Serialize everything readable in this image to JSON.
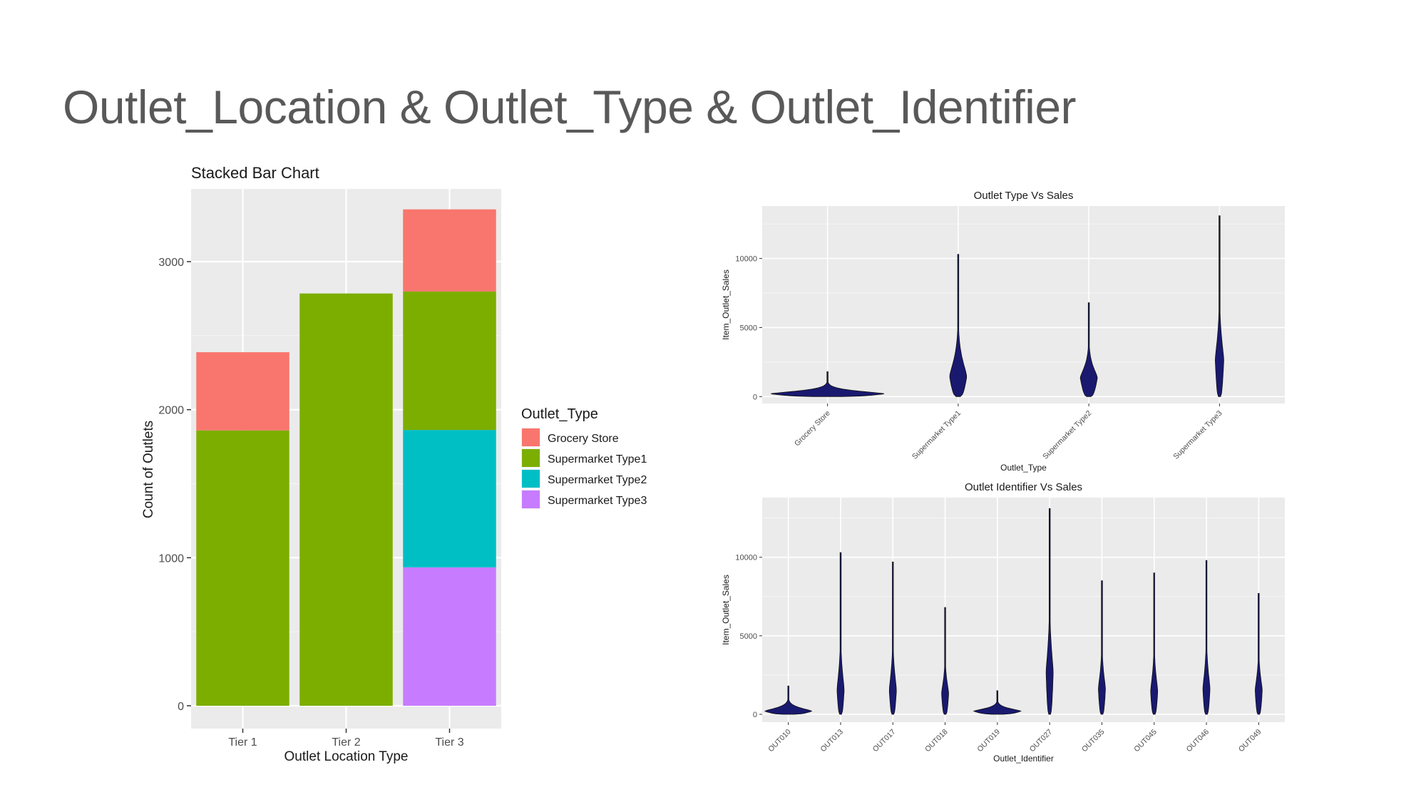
{
  "slide": {
    "title": "Outlet_Location & Outlet_Type & Outlet_Identifier"
  },
  "chart_data": [
    {
      "type": "bar",
      "stacked": true,
      "title": "Stacked Bar Chart",
      "xlabel": "Outlet Location Type",
      "ylabel": "Count of Outlets",
      "categories": [
        "Tier 1",
        "Tier 2",
        "Tier 3"
      ],
      "ylim": [
        0,
        3500
      ],
      "yticks": [
        "0",
        "1000",
        "2000",
        "3000"
      ],
      "legend": {
        "title": "Outlet_Type",
        "placement": "right"
      },
      "series": [
        {
          "name": "Supermarket Type3",
          "color": "#C77CFF",
          "values": [
            0,
            0,
            935
          ]
        },
        {
          "name": "Supermarket Type2",
          "color": "#00BFC4",
          "values": [
            0,
            0,
            928
          ]
        },
        {
          "name": "Supermarket Type1",
          "color": "#7CAE00",
          "values": [
            1860,
            2785,
            935
          ]
        },
        {
          "name": "Grocery Store",
          "color": "#F8766D",
          "values": [
            528,
            0,
            555
          ]
        }
      ]
    },
    {
      "type": "violin",
      "title": "Outlet Type Vs Sales",
      "xlabel": "Outlet_Type",
      "ylabel": "Item_Outlet_Sales",
      "ylim": [
        -500,
        13800
      ],
      "yticks": [
        "0",
        "5000",
        "10000"
      ],
      "fill": "#191970",
      "categories": [
        "Grocery Store",
        "Supermarket Type1",
        "Supermarket Type2",
        "Supermarket Type3"
      ],
      "max_values": [
        1800,
        10300,
        6800,
        13100
      ],
      "median_values": [
        250,
        1800,
        1700,
        3300
      ]
    },
    {
      "type": "violin",
      "title": "Outlet Identifier Vs Sales",
      "xlabel": "Outlet_Identifier",
      "ylabel": "Item_Outlet_Sales",
      "ylim": [
        -500,
        13800
      ],
      "yticks": [
        "0",
        "5000",
        "10000"
      ],
      "fill": "#191970",
      "categories": [
        "OUT010",
        "OUT013",
        "OUT017",
        "OUT018",
        "OUT019",
        "OUT027",
        "OUT035",
        "OUT045",
        "OUT046",
        "OUT049"
      ],
      "max_values": [
        1800,
        10300,
        9700,
        6800,
        1500,
        13100,
        8500,
        9000,
        9800,
        7700
      ],
      "median_values": [
        250,
        1900,
        1900,
        1650,
        250,
        3300,
        2000,
        1800,
        2000,
        1900
      ]
    }
  ]
}
